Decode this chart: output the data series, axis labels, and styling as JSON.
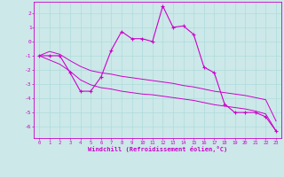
{
  "xlabel": "Windchill (Refroidissement éolien,°C)",
  "bg_color": "#cce8e8",
  "line_color": "#cc00cc",
  "x_hours": [
    0,
    1,
    2,
    3,
    4,
    5,
    6,
    7,
    8,
    9,
    10,
    11,
    12,
    13,
    14,
    15,
    16,
    17,
    18,
    19,
    20,
    21,
    22,
    23
  ],
  "y_main": [
    -1,
    -1,
    -1,
    -2.2,
    -3.5,
    -3.5,
    -2.5,
    -0.6,
    0.7,
    0.2,
    0.2,
    0.0,
    2.5,
    1.0,
    1.1,
    0.5,
    -1.8,
    -2.2,
    -4.4,
    -5.0,
    -5.0,
    -5.0,
    -5.3,
    -6.3
  ],
  "y_min": [
    -1,
    -1.3,
    -1.6,
    -2.1,
    -2.7,
    -3.05,
    -3.25,
    -3.35,
    -3.5,
    -3.6,
    -3.7,
    -3.75,
    -3.85,
    -3.95,
    -4.05,
    -4.15,
    -4.3,
    -4.45,
    -4.55,
    -4.65,
    -4.75,
    -4.9,
    -5.1,
    -6.3
  ],
  "y_max": [
    -1,
    -0.7,
    -0.9,
    -1.35,
    -1.75,
    -2.05,
    -2.2,
    -2.3,
    -2.45,
    -2.55,
    -2.65,
    -2.75,
    -2.85,
    -2.95,
    -3.1,
    -3.2,
    -3.35,
    -3.5,
    -3.6,
    -3.7,
    -3.8,
    -3.95,
    -4.1,
    -5.6
  ],
  "ylim": [
    -6.8,
    2.8
  ],
  "xlim": [
    -0.5,
    23.5
  ],
  "yticks": [
    2,
    1,
    0,
    -1,
    -2,
    -3,
    -4,
    -5,
    -6
  ],
  "xticks": [
    0,
    1,
    2,
    3,
    4,
    5,
    6,
    7,
    8,
    9,
    10,
    11,
    12,
    13,
    14,
    15,
    16,
    17,
    18,
    19,
    20,
    21,
    22,
    23
  ]
}
